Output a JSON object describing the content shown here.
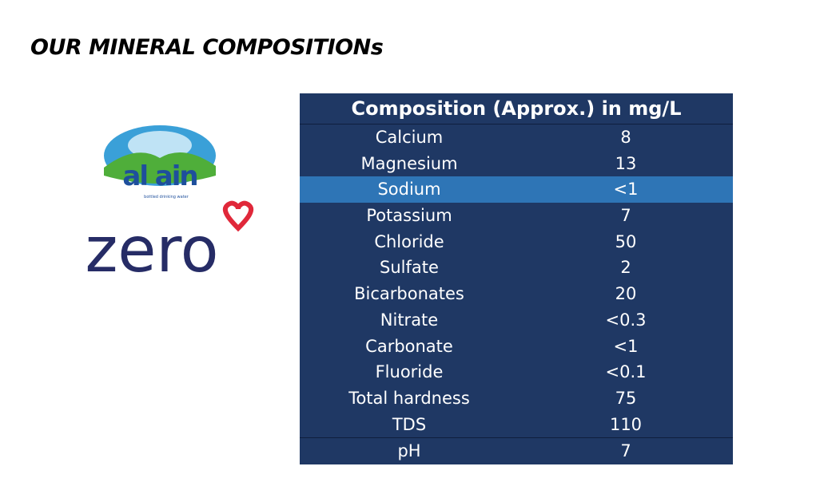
{
  "header": {
    "title": "OUR MINERAL COMPOSITIONs"
  },
  "logo": {
    "brand": "al ain",
    "tagline": "bottled drinking water",
    "product": "zero"
  },
  "table": {
    "header": "Composition (Approx.) in mg/L",
    "rows": [
      [
        "Calcium",
        8
      ],
      [
        "Magnesium",
        13
      ],
      [
        "Sodium",
        "<1"
      ],
      [
        "Potassium",
        7
      ],
      [
        "Chloride",
        50
      ],
      [
        "Sulfate",
        2
      ],
      [
        "Bicarbonates",
        20
      ],
      [
        "Nitrate",
        "<0.3"
      ],
      [
        "Carbonate",
        "<1"
      ],
      [
        "Fluoride",
        "<0.1"
      ],
      [
        "Total hardness",
        75
      ],
      [
        "TDS",
        110
      ],
      [
        "pH",
        7
      ]
    ],
    "highlight_row": 2
  }
}
